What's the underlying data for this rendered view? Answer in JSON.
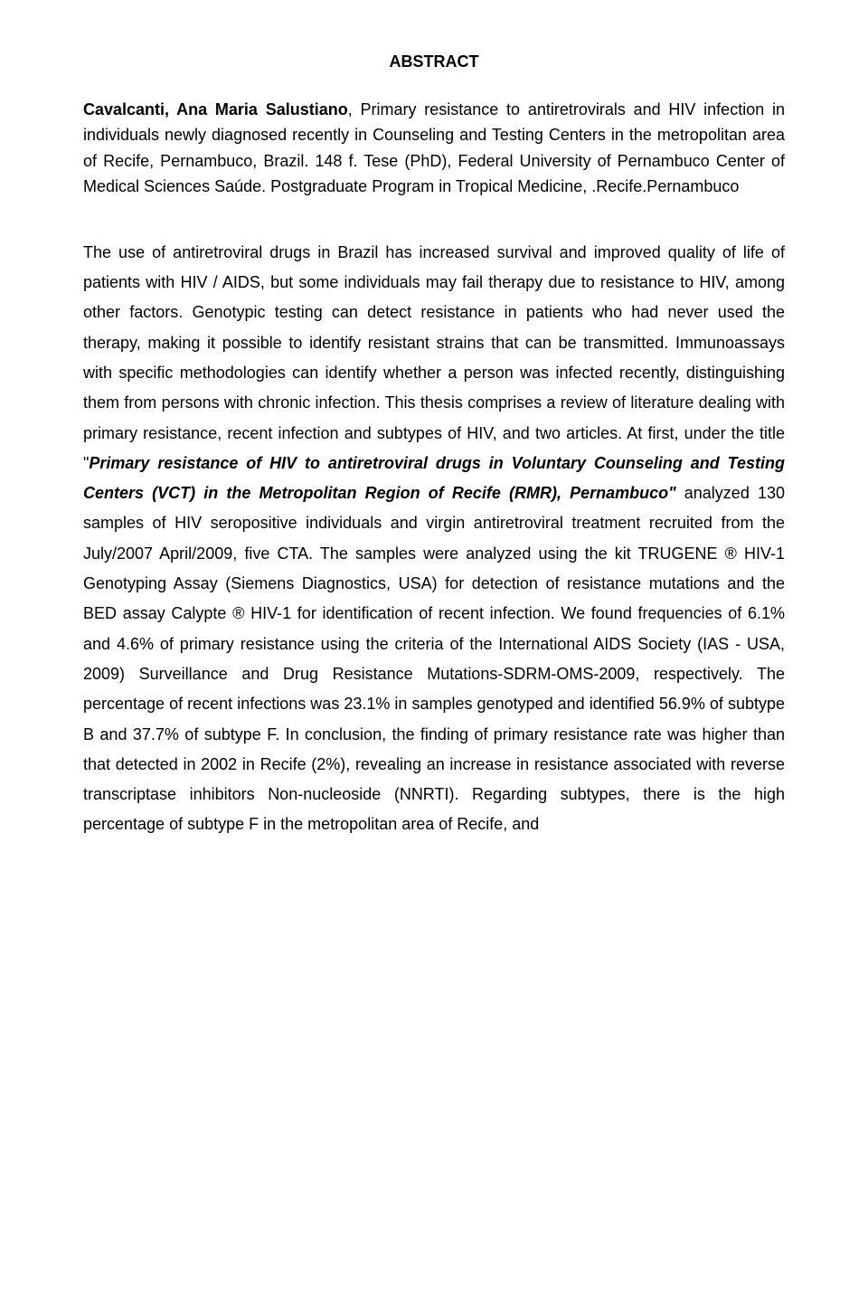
{
  "abstract_title": "ABSTRACT",
  "citation": {
    "author": "Cavalcanti, Ana Maria Salustiano",
    "title": ", Primary resistance to antiretrovirals and HIV infection in individuals newly diagnosed recently in Counseling and Testing Centers in the metropolitan area of Recife, Pernambuco, Brazil. 148 f. Tese (PhD), Federal University of Pernambuco Center of Medical Sciences Saúde. Postgraduate Program in Tropical Medicine, .Recife.Pernambuco"
  },
  "body": {
    "part1": "The use of antiretroviral drugs in Brazil has increased survival and improved quality of life of patients with HIV / AIDS, but some individuals may fail therapy due to resistance to HIV, among other factors. Genotypic testing can detect resistance in patients who had never used the therapy, making it possible to identify resistant strains that can be transmitted. Immunoassays with specific methodologies can identify whether a person was infected recently, distinguishing them from persons with chronic infection. This thesis comprises a review of literature dealing with primary resistance, recent infection and subtypes of HIV, and two articles. At first, under the title \"",
    "emphasis": "Primary resistance of HIV to antiretroviral drugs in Voluntary Counseling and Testing Centers (VCT) in the Metropolitan Region of Recife (RMR), Pernambuco\"",
    "part2": " analyzed 130 samples of HIV seropositive individuals and virgin antiretroviral treatment recruited from the July/2007 April/2009, five CTA. The samples were analyzed using the kit TRUGENE ® HIV-1 Genotyping Assay (Siemens Diagnostics, USA) for detection of resistance mutations and the BED assay Calypte ® HIV-1 for identification of recent infection. We found frequencies of 6.1% and 4.6% of primary resistance using the criteria of the International AIDS Society (IAS - USA, 2009) Surveillance and Drug Resistance Mutations-SDRM-OMS-2009, respectively. The percentage of recent infections was 23.1% in samples genotyped and identified 56.9% of subtype B and 37.7% of subtype F. In conclusion, the finding of primary resistance rate was higher than that detected in 2002 in Recife (2%), revealing an increase in resistance associated with reverse transcriptase inhibitors Non-nucleoside (NNRTI). Regarding subtypes, there is the high percentage of subtype F in the metropolitan area of Recife, and"
  }
}
